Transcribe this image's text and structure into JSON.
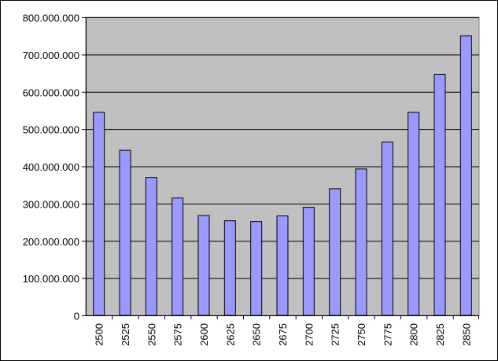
{
  "chart_data": {
    "type": "bar",
    "title": "",
    "xlabel": "",
    "ylabel": "",
    "categories": [
      "2500",
      "2525",
      "2550",
      "2575",
      "2600",
      "2625",
      "2650",
      "2675",
      "2700",
      "2725",
      "2750",
      "2775",
      "2800",
      "2825",
      "2850"
    ],
    "values": [
      545000000,
      443000000,
      370000000,
      315000000,
      268000000,
      254000000,
      252000000,
      267000000,
      290000000,
      340000000,
      393000000,
      465000000,
      545000000,
      647000000,
      750000000
    ],
    "ylim": [
      0,
      800000000
    ],
    "y_ticks": [
      0,
      100000000,
      200000000,
      300000000,
      400000000,
      500000000,
      600000000,
      700000000,
      800000000
    ],
    "y_tick_labels": [
      "0",
      "100.000.000",
      "200.000.000",
      "300.000.000",
      "400.000.000",
      "500.000.000",
      "600.000.000",
      "700.000.000",
      "800.000.000"
    ],
    "grid": true,
    "legend": "none",
    "colors": {
      "plot_background": "#c0c0c0",
      "bar_fill": "#9999ff",
      "bar_stroke": "#000000",
      "gridline": "#000000"
    }
  }
}
